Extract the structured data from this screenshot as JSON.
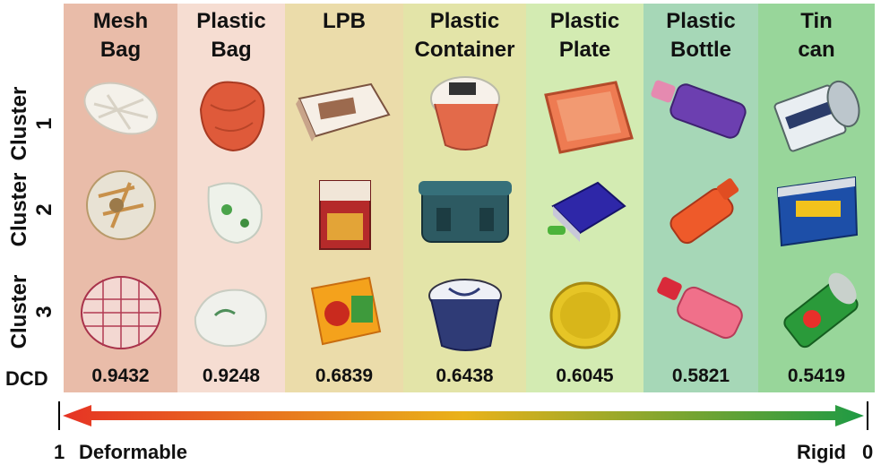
{
  "columns": [
    {
      "title1": "Mesh",
      "title2": "Bag",
      "dcd": "0.9432",
      "bg": "#e9bca9",
      "icons": [
        "mesh-bag-white-icon",
        "mesh-bag-mixed-icon",
        "mesh-bag-red-net-icon"
      ]
    },
    {
      "title1": "Plastic",
      "title2": "Bag",
      "dcd": "0.9248",
      "bg": "#f6ddd2",
      "icons": [
        "plastic-bag-red-icon",
        "plastic-bag-white-icon",
        "plastic-bag-recycle-icon"
      ]
    },
    {
      "title1": "LPB",
      "title2": "",
      "dcd": "0.6839",
      "bg": "#ebdcaa",
      "icons": [
        "milk-carton-icon",
        "stock-carton-icon",
        "juice-carton-icon"
      ]
    },
    {
      "title1": "Plastic",
      "title2": "Container",
      "dcd": "0.6438",
      "bg": "#e3e4a8",
      "icons": [
        "jelly-cup-icon",
        "lunch-box-icon",
        "yogurt-cup-icon"
      ]
    },
    {
      "title1": "Plastic",
      "title2": "Plate",
      "dcd": "0.6045",
      "bg": "#d3ebb2",
      "icons": [
        "orange-tray-icon",
        "blue-lid-container-icon",
        "yellow-lid-icon"
      ]
    },
    {
      "title1": "Plastic",
      "title2": "Bottle",
      "dcd": "0.5821",
      "bg": "#a6d7b7",
      "icons": [
        "purple-bottle-icon",
        "orange-bottle-icon",
        "pink-bottle-icon"
      ]
    },
    {
      "title1": "Tin",
      "title2": "can",
      "dcd": "0.5419",
      "bg": "#98d69a",
      "icons": [
        "coconut-can-icon",
        "spam-can-icon",
        "soda-can-icon"
      ]
    }
  ],
  "rows": [
    {
      "word": "Cluster",
      "num": "1"
    },
    {
      "word": "Cluster",
      "num": "2"
    },
    {
      "word": "Cluster",
      "num": "3"
    }
  ],
  "dcd_label": "DCD",
  "scale": {
    "left_num": "1",
    "left_text": "Deformable",
    "right_text": "Rigid",
    "right_num": "0"
  },
  "colors": {
    "arrow_start": "#e63324",
    "arrow_mid": "#e9b21a",
    "arrow_end": "#1e9a44"
  }
}
